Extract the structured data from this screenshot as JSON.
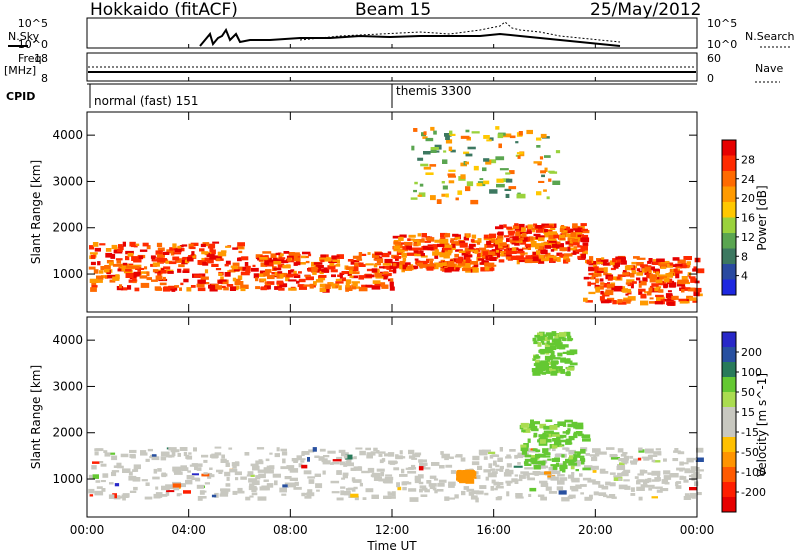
{
  "header": {
    "station": "Hokkaido (fitACF)",
    "beam": "Beam 15",
    "date": "25/May/2012"
  },
  "aux_panels": {
    "nsky_label": "N.Sky",
    "nsearch_label": "N.Search",
    "nsky_ticks": [
      "10^5",
      "10^0"
    ],
    "nsearch_ticks": [
      "10^5",
      "10^0"
    ],
    "freq_label": "Freq.",
    "freq_unit": "[MHz]",
    "freq_ticks": [
      "18",
      "8"
    ],
    "nave_label": "Nave",
    "nave_ticks": [
      "60",
      "0"
    ],
    "cpid_label": "CPID",
    "cpid_modes": [
      {
        "name": "normal (fast) 151",
        "start_hour": 0.0
      },
      {
        "name": "themis 3300",
        "start_hour": 12.0
      }
    ]
  },
  "power_colorbar": {
    "title": "Power [dB]",
    "labels": [
      "28",
      "24",
      "20",
      "16",
      "12",
      "8",
      "4"
    ],
    "colors": [
      "#e60000",
      "#ff2a00",
      "#ff6a00",
      "#ff9a00",
      "#ffc800",
      "#9ad23c",
      "#5aa550",
      "#3c7860",
      "#2a4aa0",
      "#1e28e0"
    ]
  },
  "velocity_colorbar": {
    "title": "Velocity [m s^-1]",
    "labels": [
      "200",
      "100",
      "50",
      "15",
      "-15",
      "-50",
      "-100",
      "-200"
    ],
    "colors": [
      "#2828c8",
      "#2850a0",
      "#287a5a",
      "#64c832",
      "#aadc50",
      "#c8c8c0",
      "#c8c8c0",
      "#ffc000",
      "#ff9400",
      "#ff5a00",
      "#ff1e00",
      "#e60000"
    ]
  },
  "chart_data": [
    {
      "type": "heatmap",
      "name": "power",
      "ylabel": "Slant Range [km]",
      "xlabel": "Time UT",
      "xlim_hours": [
        0,
        24
      ],
      "ylim_km": [
        180,
        4500
      ],
      "x_ticks": [
        "00:00",
        "04:00",
        "08:00",
        "12:00",
        "16:00",
        "20:00",
        "00:00"
      ],
      "y_ticks": [
        1000,
        2000,
        3000,
        4000
      ],
      "echo_bands": [
        {
          "t0": 0.0,
          "t1": 6.0,
          "r0": 700,
          "r1": 1700,
          "level": "high"
        },
        {
          "t0": 6.0,
          "t1": 12.0,
          "r0": 700,
          "r1": 1500,
          "level": "high"
        },
        {
          "t0": 12.0,
          "t1": 16.0,
          "r0": 1100,
          "r1": 1900,
          "level": "high"
        },
        {
          "t0": 16.0,
          "t1": 19.5,
          "r0": 1300,
          "r1": 2100,
          "level": "high"
        },
        {
          "t0": 19.5,
          "t1": 24.0,
          "r0": 400,
          "r1": 1400,
          "level": "high"
        },
        {
          "t0": 12.5,
          "t1": 18.5,
          "r0": 2600,
          "r1": 4200,
          "level": "medium"
        }
      ]
    },
    {
      "type": "heatmap",
      "name": "velocity",
      "ylabel": "Slant Range [km]",
      "xlabel": "Time UT",
      "xlim_hours": [
        0,
        24
      ],
      "ylim_km": [
        180,
        4500
      ],
      "x_ticks": [
        "00:00",
        "04:00",
        "08:00",
        "12:00",
        "16:00",
        "20:00",
        "00:00"
      ],
      "y_ticks": [
        1000,
        2000,
        3000,
        4000
      ],
      "echo_bands": [
        {
          "t0": 0.0,
          "t1": 24.0,
          "r0": 600,
          "r1": 1700,
          "velocity": "-15 to 15"
        },
        {
          "t0": 17.0,
          "t1": 19.5,
          "r0": 1200,
          "r1": 2300,
          "velocity": "15 to 50"
        },
        {
          "t0": 17.5,
          "t1": 19.0,
          "r0": 3300,
          "r1": 4200,
          "velocity": "15 to 50"
        },
        {
          "t0": 14.5,
          "t1": 15.0,
          "r0": 1000,
          "r1": 1200,
          "velocity": "-50 to -100"
        }
      ]
    }
  ]
}
